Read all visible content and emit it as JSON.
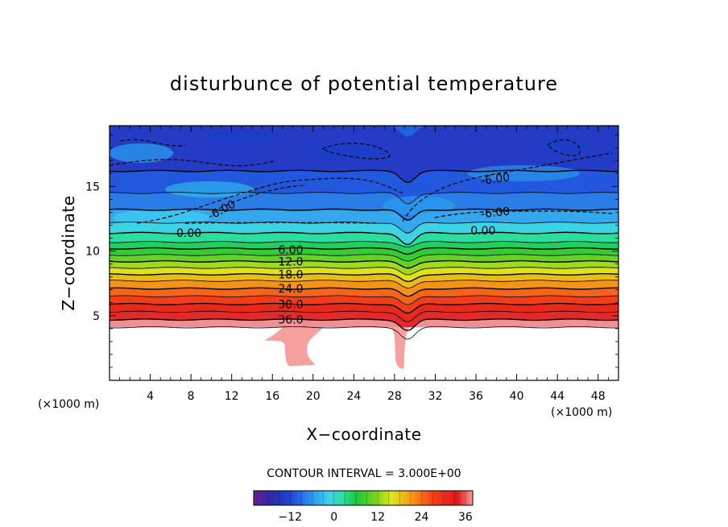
{
  "chart_data": {
    "type": "contour",
    "title": "disturbunce of potential temperature",
    "xlabel": "X−coordinate",
    "ylabel": "Z−coordinate",
    "x_unit": "(×1000 m)",
    "y_unit": "(×1000 m)",
    "xlim": [
      0,
      50
    ],
    "ylim": [
      0,
      19.7
    ],
    "x_ticks": [
      4,
      8,
      12,
      16,
      20,
      24,
      28,
      32,
      36,
      40,
      44,
      48
    ],
    "y_ticks": [
      5,
      10,
      15
    ],
    "contour_interval_label": "CONTOUR INTERVAL = 3.000E+00",
    "contour_interval": 3.0,
    "color_range": [
      -22,
      38
    ],
    "colorbar_ticks": [
      "−12",
      "0",
      "12",
      "24",
      "36"
    ],
    "colorbar_tick_values": [
      -12,
      0,
      12,
      24,
      36
    ],
    "contour_labels": [
      {
        "text": "6.00",
        "value": 6.0
      },
      {
        "text": "12.0",
        "value": 12.0
      },
      {
        "text": "18.0",
        "value": 18.0
      },
      {
        "text": "24.0",
        "value": 24.0
      },
      {
        "text": "30.0",
        "value": 30.0
      },
      {
        "text": "36.0",
        "value": 36.0
      },
      {
        "text": "0.00",
        "value": 0.0
      },
      {
        "text": "0.00",
        "value": 0.0
      },
      {
        "text": "-6.00",
        "value": -6.0
      },
      {
        "text": "-6.00",
        "value": -6.0
      },
      {
        "text": "-6.00",
        "value": -6.0
      }
    ],
    "levels": [
      {
        "value": 39,
        "z": 4.1
      },
      {
        "value": 36,
        "z": 4.7
      },
      {
        "value": 33,
        "z": 5.3
      },
      {
        "value": 30,
        "z": 5.9
      },
      {
        "value": 27,
        "z": 6.5
      },
      {
        "value": 24,
        "z": 7.1
      },
      {
        "value": 21,
        "z": 7.7
      },
      {
        "value": 18,
        "z": 8.2
      },
      {
        "value": 15,
        "z": 8.7
      },
      {
        "value": 12,
        "z": 9.2
      },
      {
        "value": 9,
        "z": 9.7
      },
      {
        "value": 6,
        "z": 10.2
      },
      {
        "value": 3,
        "z": 10.7
      },
      {
        "value": 0,
        "z": 11.4
      },
      {
        "value": -3,
        "z": 12.2
      },
      {
        "value": -6,
        "z": 13.2
      },
      {
        "value": -9,
        "z": 14.5
      },
      {
        "value": -12,
        "z": 16.2
      }
    ]
  }
}
